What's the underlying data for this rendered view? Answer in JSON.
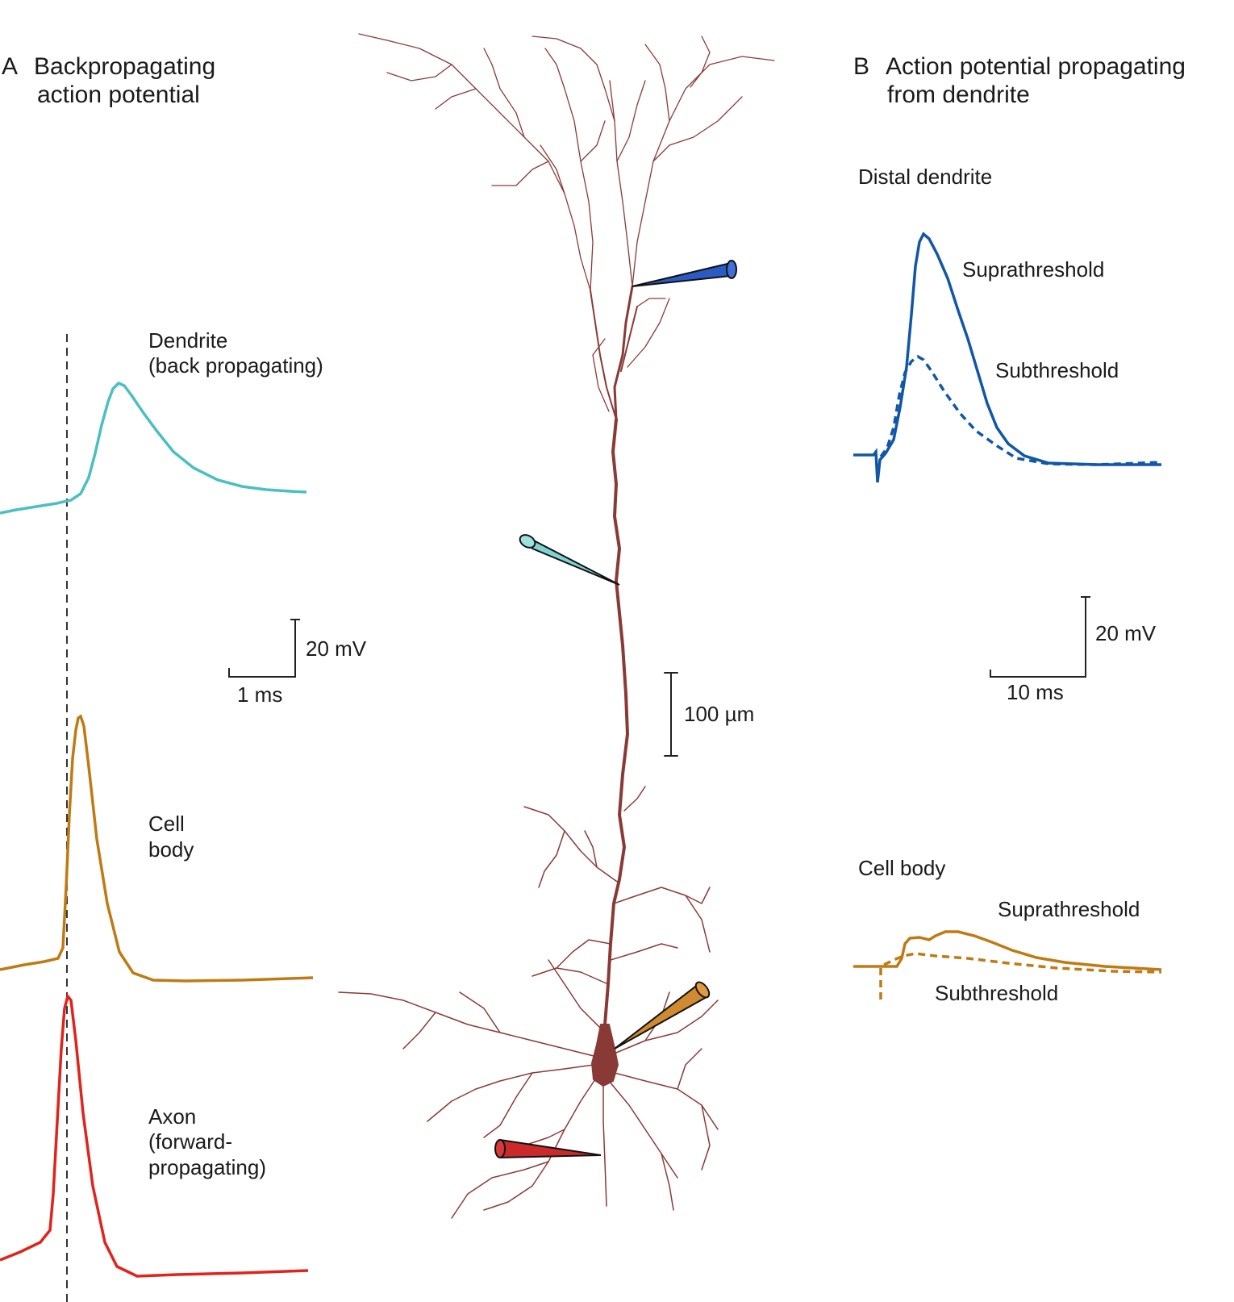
{
  "panel_a": {
    "letter": "A",
    "title_line1": "Backpropagating",
    "title_line2": "action potential",
    "traces": {
      "dendrite": {
        "label_line1": "Dendrite",
        "label_line2": "(back propagating)",
        "color": "#4bbfc1"
      },
      "cell_body": {
        "label_line1": "Cell",
        "label_line2": "body",
        "color": "#c07a14"
      },
      "axon": {
        "label_line1": "Axon",
        "label_line2": "(forward-",
        "label_line3": "propagating)",
        "color": "#e0231b"
      }
    },
    "scale_bar": {
      "voltage": "20 mV",
      "time": "1 ms"
    }
  },
  "panel_b": {
    "letter": "B",
    "title_line1": "Action potential propagating",
    "title_line2": "from dendrite",
    "distal_dendrite": {
      "heading": "Distal dendrite",
      "supra_label": "Suprathreshold",
      "sub_label": "Subthreshold",
      "color": "#1157a8"
    },
    "cell_body": {
      "heading": "Cell body",
      "supra_label": "Suprathreshold",
      "sub_label": "Subthreshold",
      "color": "#c07a14"
    },
    "scale_bar": {
      "voltage": "20 mV",
      "time": "10 ms"
    }
  },
  "neuron": {
    "scale_bar": "100 µm",
    "color": "#8a3a36",
    "electrodes": {
      "distal_dendrite": "#2a5bc4",
      "dendrite": "#7fd3d3",
      "cell_body": "#d08a30",
      "axon": "#cc2a2a"
    }
  }
}
